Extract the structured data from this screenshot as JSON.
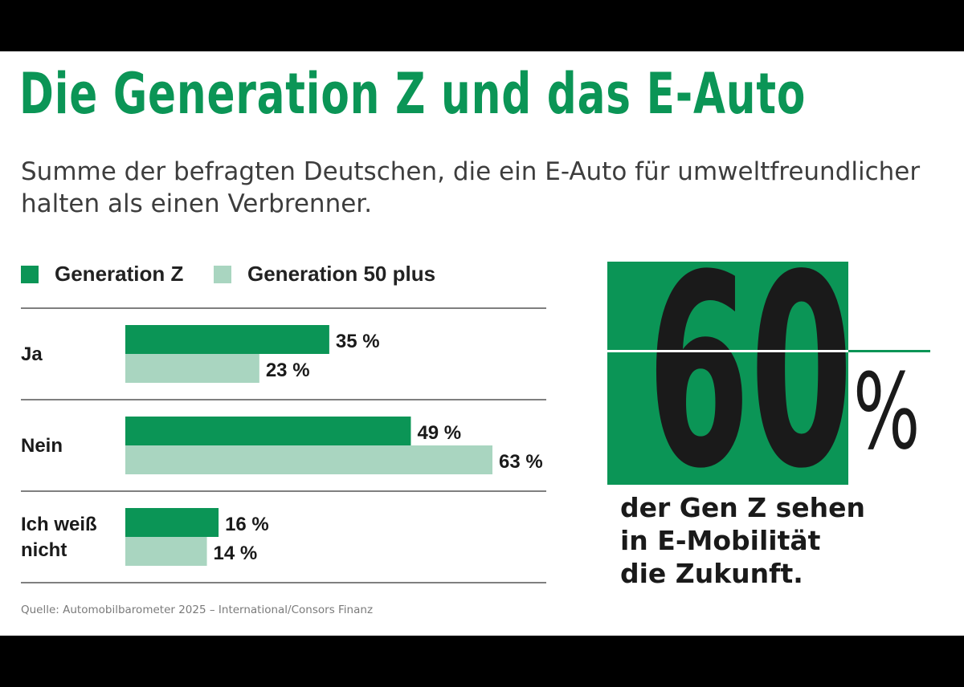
{
  "title": "Die Generation Z und das E-Auto",
  "subtitle": "Summe der befragten Deutschen, die ein E-Auto für umweltfreundlicher halten als einen Verbrenner.",
  "colors": {
    "genz": "#0b9556",
    "gen50": "#a9d5c0",
    "text": "#1a1a1a",
    "rule": "#555555"
  },
  "chart_data": {
    "type": "bar",
    "orientation": "horizontal",
    "categories": [
      "Ja",
      "Nein",
      "Ich weiß nicht"
    ],
    "category_label_lines": [
      [
        "Ja"
      ],
      [
        "Nein"
      ],
      [
        "Ich weiß",
        "nicht"
      ]
    ],
    "series": [
      {
        "name": "Generation Z",
        "values": [
          35,
          49,
          16
        ],
        "labels": [
          "35 %",
          "49 %",
          "16 %"
        ],
        "color": "#0b9556"
      },
      {
        "name": "Generation 50 plus",
        "values": [
          23,
          63,
          14
        ],
        "labels": [
          "23 %",
          "63 %",
          "14 %"
        ],
        "color": "#a9d5c0"
      }
    ],
    "unit": "%",
    "xlim": [
      0,
      63
    ],
    "grid": false,
    "legend": "top-left"
  },
  "highlight": {
    "number": "60",
    "unit": "%",
    "text_lines": [
      "der Gen Z sehen",
      "in E-Mobilität",
      "die Zukunft."
    ]
  },
  "source": "Quelle: Automobilbarometer 2025 – International/Consors Finanz"
}
